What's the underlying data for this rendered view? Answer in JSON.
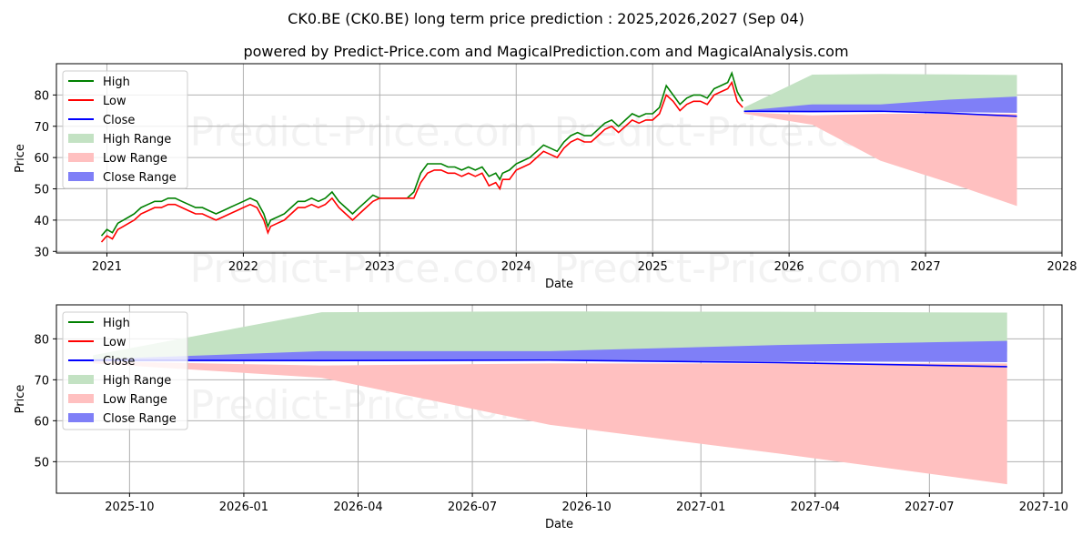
{
  "title": "CK0.BE (CK0.BE) long term price prediction : 2025,2026,2027 (Sep 04)",
  "subtitle": "powered by Predict-Price.com and MagicalPrediction.com and MagicalAnalysis.com",
  "watermark": "Predict-Price.com",
  "legend": [
    {
      "label": "High",
      "kind": "line",
      "color": "#008000"
    },
    {
      "label": "Low",
      "kind": "line",
      "color": "#ff0000"
    },
    {
      "label": "Close",
      "kind": "line",
      "color": "#0000ff"
    },
    {
      "label": "High Range",
      "kind": "band",
      "color": "#c3e2c3"
    },
    {
      "label": "Low Range",
      "kind": "band",
      "color": "#ffc0c0"
    },
    {
      "label": "Close Range",
      "kind": "band",
      "color": "#7f7ff7"
    }
  ],
  "chart_data": [
    {
      "type": "line",
      "xlabel": "Date",
      "ylabel": "Price",
      "xlim": [
        2020.63,
        2028.0
      ],
      "ylim": [
        29.5,
        90
      ],
      "xticks": [
        2021,
        2022,
        2023,
        2024,
        2025,
        2026,
        2027,
        2028
      ],
      "xtick_labels": [
        "2021",
        "2022",
        "2023",
        "2024",
        "2025",
        "2026",
        "2027",
        "2028"
      ],
      "yticks": [
        30,
        40,
        50,
        60,
        70,
        80
      ],
      "ytick_labels": [
        "30",
        "40",
        "50",
        "60",
        "70",
        "80"
      ],
      "grid": true,
      "legend_position": "top-left",
      "history_x": [
        2020.96,
        2021.0,
        2021.04,
        2021.08,
        2021.12,
        2021.16,
        2021.2,
        2021.25,
        2021.3,
        2021.35,
        2021.4,
        2021.45,
        2021.5,
        2021.55,
        2021.6,
        2021.65,
        2021.7,
        2021.75,
        2021.8,
        2021.85,
        2021.9,
        2021.95,
        2022.0,
        2022.05,
        2022.1,
        2022.15,
        2022.18,
        2022.2,
        2022.25,
        2022.3,
        2022.35,
        2022.4,
        2022.45,
        2022.5,
        2022.55,
        2022.6,
        2022.65,
        2022.7,
        2022.75,
        2022.8,
        2022.85,
        2022.9,
        2022.95,
        2023.0,
        2023.05,
        2023.1,
        2023.15,
        2023.2,
        2023.25,
        2023.3,
        2023.35,
        2023.4,
        2023.45,
        2023.5,
        2023.55,
        2023.6,
        2023.65,
        2023.7,
        2023.75,
        2023.8,
        2023.85,
        2023.88,
        2023.9,
        2023.95,
        2024.0,
        2024.05,
        2024.1,
        2024.15,
        2024.2,
        2024.25,
        2024.3,
        2024.35,
        2024.4,
        2024.45,
        2024.5,
        2024.55,
        2024.6,
        2024.65,
        2024.7,
        2024.75,
        2024.8,
        2024.85,
        2024.9,
        2024.95,
        2025.0,
        2025.05,
        2025.1,
        2025.15,
        2025.2,
        2025.25,
        2025.3,
        2025.35,
        2025.4,
        2025.45,
        2025.5,
        2025.55,
        2025.58,
        2025.62,
        2025.66
      ],
      "history_low": [
        33,
        35,
        34,
        37,
        38,
        39,
        40,
        42,
        43,
        44,
        44,
        45,
        45,
        44,
        43,
        42,
        42,
        41,
        40,
        41,
        42,
        43,
        44,
        45,
        44,
        40,
        36,
        38,
        39,
        40,
        42,
        44,
        44,
        45,
        44,
        45,
        47,
        44,
        42,
        40,
        42,
        44,
        46,
        47,
        47,
        47,
        47,
        47,
        47,
        52,
        55,
        56,
        56,
        55,
        55,
        54,
        55,
        54,
        55,
        51,
        52,
        50,
        53,
        53,
        56,
        57,
        58,
        60,
        62,
        61,
        60,
        63,
        65,
        66,
        65,
        65,
        67,
        69,
        70,
        68,
        70,
        72,
        71,
        72,
        72,
        74,
        80,
        78,
        75,
        77,
        78,
        78,
        77,
        80,
        81,
        82,
        84,
        78,
        76
      ],
      "history_high": [
        35,
        37,
        36,
        39,
        40,
        41,
        42,
        44,
        45,
        46,
        46,
        47,
        47,
        46,
        45,
        44,
        44,
        43,
        42,
        43,
        44,
        45,
        46,
        47,
        46,
        42,
        38,
        40,
        41,
        42,
        44,
        46,
        46,
        47,
        46,
        47,
        49,
        46,
        44,
        42,
        44,
        46,
        48,
        47,
        47,
        47,
        47,
        47,
        49,
        55,
        58,
        58,
        58,
        57,
        57,
        56,
        57,
        56,
        57,
        54,
        55,
        53,
        55,
        56,
        58,
        59,
        60,
        62,
        64,
        63,
        62,
        65,
        67,
        68,
        67,
        67,
        69,
        71,
        72,
        70,
        72,
        74,
        73,
        74,
        74,
        76,
        83,
        80,
        77,
        79,
        80,
        80,
        79,
        82,
        83,
        84,
        87,
        81,
        78
      ],
      "forecast_x": [
        2025.67,
        2026.17,
        2026.67,
        2027.17,
        2027.67
      ],
      "high_range_upper": [
        76,
        86.5,
        86.7,
        86.6,
        86.4
      ],
      "high_range_lower": [
        74.5,
        76,
        76.2,
        76.5,
        76.8
      ],
      "low_range_upper": [
        74.5,
        73.5,
        74,
        74,
        74
      ],
      "low_range_lower": [
        74,
        70.5,
        59,
        52,
        44.5
      ],
      "close_range_upper": [
        75,
        77,
        77,
        78.5,
        79.5
      ],
      "close_range_lower": [
        74.5,
        74.5,
        74.8,
        74.5,
        74.3
      ],
      "close_line": [
        74.8,
        74.7,
        74.8,
        74.2,
        73.2
      ]
    },
    {
      "type": "area",
      "xlabel": "Date",
      "ylabel": "Price",
      "xlim": [
        2025.59,
        2027.79
      ],
      "ylim": [
        42.3,
        88.3
      ],
      "xticks": [
        2025.75,
        2026.0,
        2026.25,
        2026.5,
        2026.75,
        2027.0,
        2027.25,
        2027.5,
        2027.75
      ],
      "xtick_labels": [
        "2025-10",
        "2026-01",
        "2026-04",
        "2026-07",
        "2026-10",
        "2027-01",
        "2027-04",
        "2027-07",
        "2027-10"
      ],
      "yticks": [
        50,
        60,
        70,
        80
      ],
      "ytick_labels": [
        "50",
        "60",
        "70",
        "80"
      ],
      "grid": true,
      "legend_position": "top-left",
      "forecast_x": [
        2025.67,
        2026.17,
        2026.67,
        2027.17,
        2027.67
      ],
      "high_range_upper": [
        76,
        86.5,
        86.7,
        86.6,
        86.4
      ],
      "high_range_lower": [
        74.5,
        76,
        76.2,
        76.5,
        76.8
      ],
      "low_range_upper": [
        74.5,
        73.5,
        74,
        74,
        74
      ],
      "low_range_lower": [
        74,
        70.5,
        59,
        52,
        44.5
      ],
      "close_range_upper": [
        75,
        77,
        77,
        78.5,
        79.5
      ],
      "close_range_lower": [
        74.5,
        74.5,
        74.8,
        74.5,
        74.3
      ],
      "close_line": [
        74.8,
        74.7,
        74.8,
        74.2,
        73.2
      ]
    }
  ]
}
